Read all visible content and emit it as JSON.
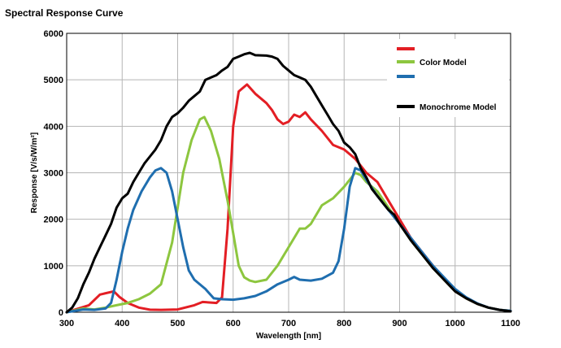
{
  "chart_data": {
    "type": "line",
    "title": "Spectral Response Curve",
    "xlabel": "Wavelength [nm]",
    "ylabel": "Response [V/s/W/m²]",
    "xlim": [
      300,
      1100
    ],
    "ylim": [
      0,
      6000
    ],
    "grid": true,
    "legend_position": "top-right",
    "x_ticks": [
      300,
      400,
      500,
      600,
      700,
      800,
      900,
      1000,
      1100
    ],
    "y_ticks": [
      0,
      1000,
      2000,
      3000,
      4000,
      5000,
      6000
    ],
    "series": [
      {
        "name": "",
        "color": "#e31e24",
        "points": [
          [
            300,
            0
          ],
          [
            340,
            150
          ],
          [
            360,
            380
          ],
          [
            385,
            450
          ],
          [
            395,
            330
          ],
          [
            410,
            200
          ],
          [
            430,
            100
          ],
          [
            450,
            55
          ],
          [
            470,
            50
          ],
          [
            500,
            60
          ],
          [
            530,
            150
          ],
          [
            545,
            220
          ],
          [
            570,
            200
          ],
          [
            580,
            320
          ],
          [
            590,
            1800
          ],
          [
            600,
            4000
          ],
          [
            610,
            4750
          ],
          [
            625,
            4900
          ],
          [
            640,
            4700
          ],
          [
            660,
            4500
          ],
          [
            670,
            4350
          ],
          [
            680,
            4150
          ],
          [
            690,
            4050
          ],
          [
            700,
            4100
          ],
          [
            710,
            4250
          ],
          [
            720,
            4200
          ],
          [
            730,
            4300
          ],
          [
            740,
            4150
          ],
          [
            760,
            3900
          ],
          [
            780,
            3600
          ],
          [
            800,
            3500
          ],
          [
            820,
            3300
          ],
          [
            840,
            3000
          ],
          [
            860,
            2800
          ],
          [
            880,
            2400
          ],
          [
            900,
            2000
          ],
          [
            920,
            1600
          ],
          [
            940,
            1300
          ],
          [
            960,
            1000
          ],
          [
            980,
            700
          ],
          [
            1000,
            450
          ],
          [
            1020,
            300
          ],
          [
            1040,
            180
          ],
          [
            1060,
            100
          ],
          [
            1080,
            50
          ],
          [
            1100,
            30
          ]
        ]
      },
      {
        "name": "Color Model",
        "color": "#8dc63f",
        "points": [
          [
            300,
            0
          ],
          [
            330,
            80
          ],
          [
            350,
            60
          ],
          [
            370,
            100
          ],
          [
            390,
            150
          ],
          [
            410,
            200
          ],
          [
            430,
            280
          ],
          [
            450,
            400
          ],
          [
            470,
            600
          ],
          [
            490,
            1500
          ],
          [
            510,
            3000
          ],
          [
            525,
            3700
          ],
          [
            540,
            4150
          ],
          [
            548,
            4200
          ],
          [
            560,
            3900
          ],
          [
            575,
            3300
          ],
          [
            590,
            2400
          ],
          [
            600,
            1700
          ],
          [
            610,
            1000
          ],
          [
            620,
            750
          ],
          [
            630,
            680
          ],
          [
            640,
            650
          ],
          [
            660,
            700
          ],
          [
            680,
            1000
          ],
          [
            700,
            1400
          ],
          [
            720,
            1800
          ],
          [
            730,
            1800
          ],
          [
            740,
            1900
          ],
          [
            760,
            2300
          ],
          [
            780,
            2450
          ],
          [
            800,
            2700
          ],
          [
            820,
            3000
          ],
          [
            830,
            2950
          ],
          [
            840,
            2800
          ],
          [
            860,
            2600
          ],
          [
            880,
            2250
          ],
          [
            900,
            1900
          ],
          [
            920,
            1550
          ],
          [
            940,
            1250
          ],
          [
            960,
            950
          ],
          [
            980,
            700
          ],
          [
            1000,
            450
          ],
          [
            1020,
            300
          ],
          [
            1040,
            180
          ],
          [
            1060,
            100
          ],
          [
            1080,
            50
          ],
          [
            1100,
            30
          ]
        ]
      },
      {
        "name": "",
        "color": "#1f6eaf",
        "points": [
          [
            300,
            0
          ],
          [
            330,
            60
          ],
          [
            350,
            50
          ],
          [
            370,
            80
          ],
          [
            380,
            200
          ],
          [
            390,
            700
          ],
          [
            400,
            1300
          ],
          [
            410,
            1800
          ],
          [
            420,
            2200
          ],
          [
            435,
            2600
          ],
          [
            450,
            2900
          ],
          [
            460,
            3050
          ],
          [
            470,
            3100
          ],
          [
            480,
            3000
          ],
          [
            490,
            2600
          ],
          [
            500,
            2000
          ],
          [
            510,
            1400
          ],
          [
            520,
            900
          ],
          [
            530,
            700
          ],
          [
            550,
            500
          ],
          [
            565,
            300
          ],
          [
            580,
            280
          ],
          [
            600,
            270
          ],
          [
            620,
            300
          ],
          [
            640,
            350
          ],
          [
            660,
            450
          ],
          [
            680,
            600
          ],
          [
            700,
            700
          ],
          [
            710,
            760
          ],
          [
            720,
            700
          ],
          [
            740,
            680
          ],
          [
            760,
            720
          ],
          [
            780,
            850
          ],
          [
            790,
            1100
          ],
          [
            800,
            1800
          ],
          [
            810,
            2700
          ],
          [
            820,
            3100
          ],
          [
            830,
            3050
          ],
          [
            840,
            2850
          ],
          [
            860,
            2500
          ],
          [
            880,
            2200
          ],
          [
            900,
            1900
          ],
          [
            920,
            1600
          ],
          [
            940,
            1300
          ],
          [
            960,
            1000
          ],
          [
            980,
            750
          ],
          [
            1000,
            500
          ],
          [
            1020,
            320
          ],
          [
            1040,
            190
          ],
          [
            1060,
            100
          ],
          [
            1080,
            50
          ],
          [
            1100,
            30
          ]
        ]
      },
      {
        "name": "Monochrome Model",
        "color": "#000000",
        "points": [
          [
            300,
            0
          ],
          [
            310,
            100
          ],
          [
            320,
            300
          ],
          [
            330,
            600
          ],
          [
            340,
            850
          ],
          [
            350,
            1150
          ],
          [
            360,
            1400
          ],
          [
            370,
            1650
          ],
          [
            380,
            1900
          ],
          [
            390,
            2250
          ],
          [
            400,
            2450
          ],
          [
            410,
            2550
          ],
          [
            420,
            2800
          ],
          [
            430,
            3000
          ],
          [
            440,
            3200
          ],
          [
            450,
            3350
          ],
          [
            460,
            3500
          ],
          [
            470,
            3700
          ],
          [
            480,
            4000
          ],
          [
            490,
            4200
          ],
          [
            500,
            4280
          ],
          [
            510,
            4400
          ],
          [
            520,
            4550
          ],
          [
            530,
            4650
          ],
          [
            540,
            4750
          ],
          [
            550,
            5000
          ],
          [
            560,
            5050
          ],
          [
            570,
            5100
          ],
          [
            580,
            5200
          ],
          [
            590,
            5280
          ],
          [
            600,
            5450
          ],
          [
            610,
            5500
          ],
          [
            620,
            5550
          ],
          [
            630,
            5580
          ],
          [
            640,
            5530
          ],
          [
            660,
            5520
          ],
          [
            670,
            5500
          ],
          [
            680,
            5450
          ],
          [
            690,
            5300
          ],
          [
            700,
            5200
          ],
          [
            710,
            5100
          ],
          [
            720,
            5050
          ],
          [
            730,
            5000
          ],
          [
            740,
            4850
          ],
          [
            750,
            4650
          ],
          [
            760,
            4450
          ],
          [
            770,
            4250
          ],
          [
            780,
            4050
          ],
          [
            790,
            3900
          ],
          [
            800,
            3650
          ],
          [
            810,
            3550
          ],
          [
            820,
            3400
          ],
          [
            830,
            3100
          ],
          [
            840,
            2900
          ],
          [
            850,
            2650
          ],
          [
            860,
            2500
          ],
          [
            870,
            2350
          ],
          [
            880,
            2200
          ],
          [
            890,
            2100
          ],
          [
            900,
            1900
          ],
          [
            920,
            1550
          ],
          [
            940,
            1250
          ],
          [
            960,
            950
          ],
          [
            980,
            700
          ],
          [
            1000,
            450
          ],
          [
            1020,
            300
          ],
          [
            1040,
            180
          ],
          [
            1060,
            100
          ],
          [
            1080,
            50
          ],
          [
            1100,
            20
          ]
        ]
      }
    ]
  }
}
